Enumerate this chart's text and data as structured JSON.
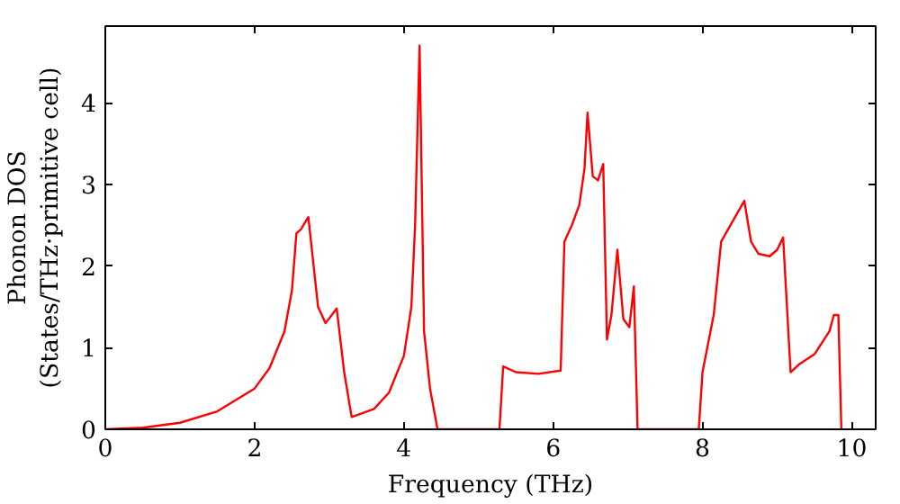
{
  "chart_data": {
    "type": "line",
    "xlabel": "Frequency (THz)",
    "ylabel": "Phonon DOS\n(States/THz·primitive cell)",
    "xlim": [
      0,
      10.32
    ],
    "ylim": [
      0,
      4.94
    ],
    "xticks": [
      0,
      2,
      4,
      6,
      8,
      10
    ],
    "yticks": [
      0,
      1,
      2,
      3,
      4
    ],
    "grid": false,
    "series": [
      {
        "color": "#ff0000",
        "x": [
          0,
          0.5,
          1,
          1.5,
          2,
          2.2,
          2.4,
          2.5,
          2.56,
          2.62,
          2.72,
          2.85,
          2.95,
          3.1,
          3.2,
          3.3,
          3.6,
          3.8,
          4.0,
          4.1,
          4.15,
          4.21,
          4.27,
          4.35,
          4.45,
          5.28,
          5.33,
          5.5,
          5.8,
          6.1,
          6.15,
          6.25,
          6.35,
          6.42,
          6.46,
          6.53,
          6.6,
          6.67,
          6.72,
          6.78,
          6.86,
          6.94,
          7.02,
          7.08,
          7.13,
          7.95,
          8.0,
          8.15,
          8.25,
          8.56,
          8.65,
          8.75,
          8.9,
          9.0,
          9.08,
          9.18,
          9.3,
          9.5,
          9.7,
          9.76,
          9.82,
          9.86
        ],
        "values": [
          0,
          0.02,
          0.08,
          0.22,
          0.5,
          0.75,
          1.2,
          1.7,
          2.4,
          2.45,
          2.6,
          1.5,
          1.3,
          1.48,
          0.7,
          0.15,
          0.25,
          0.45,
          0.9,
          1.5,
          2.5,
          4.7,
          1.2,
          0.5,
          0,
          0,
          0.77,
          0.7,
          0.68,
          0.72,
          2.3,
          2.5,
          2.75,
          3.2,
          3.88,
          3.1,
          3.05,
          3.25,
          1.1,
          1.4,
          2.2,
          1.35,
          1.25,
          1.75,
          0,
          0,
          0.7,
          1.4,
          2.3,
          2.8,
          2.3,
          2.15,
          2.12,
          2.2,
          2.35,
          0.7,
          0.8,
          0.92,
          1.2,
          1.4,
          1.4,
          0
        ]
      }
    ]
  }
}
